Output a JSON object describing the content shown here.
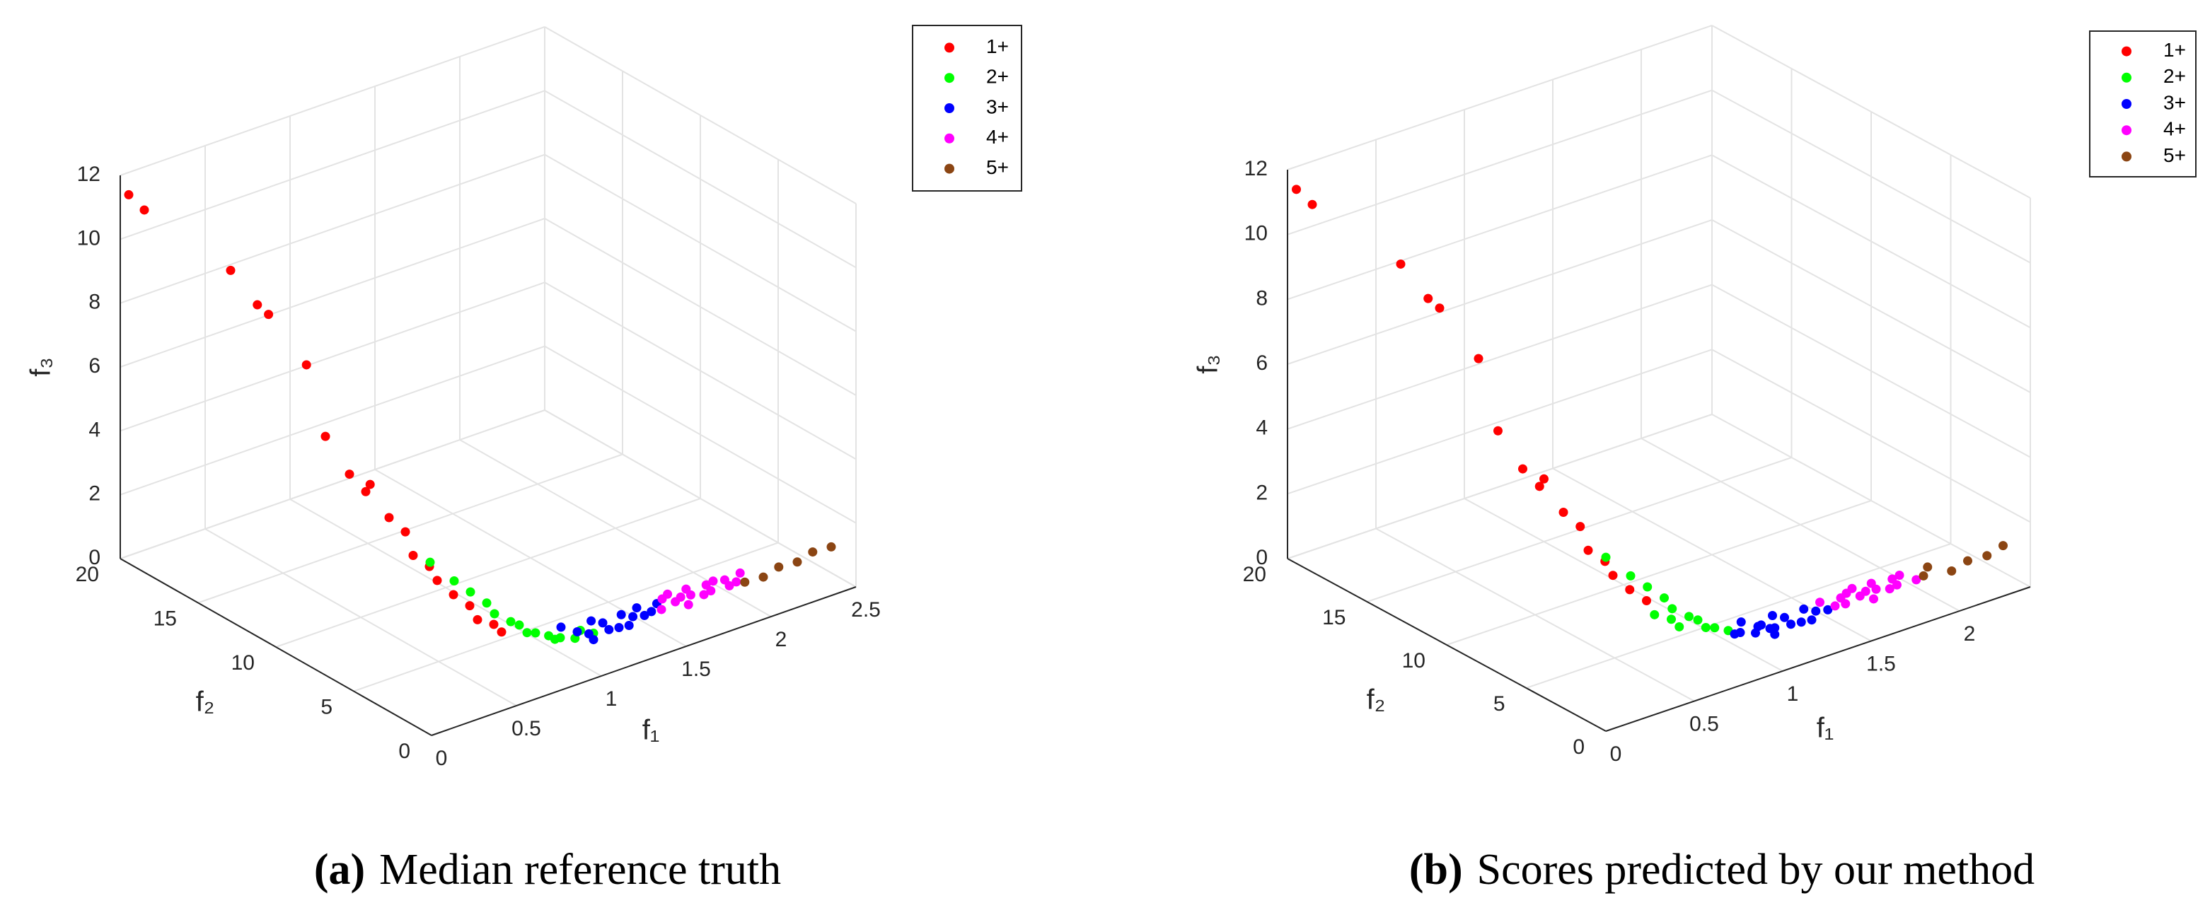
{
  "chart_data": [
    {
      "type": "scatter3d",
      "caption_label": "(a)",
      "caption": "Median reference truth",
      "xlabel": "f₁",
      "ylabel": "f₂",
      "zlabel": "f₃",
      "xlim": [
        0,
        2.5
      ],
      "xticks": [
        0,
        0.5,
        1,
        1.5,
        2,
        2.5
      ],
      "ylim": [
        0,
        20
      ],
      "yticks": [
        0,
        5,
        10,
        15,
        20
      ],
      "zlim": [
        0,
        12
      ],
      "zticks": [
        0,
        2,
        4,
        6,
        8,
        10,
        12
      ],
      "grid": true,
      "legend": "upper right",
      "series": [
        {
          "name": "1+",
          "color": "#ff0000",
          "x": [
            0.05,
            0.05,
            0.1,
            0.12,
            0.14,
            0.18,
            0.2,
            0.25,
            0.28,
            0.3,
            0.3,
            0.35,
            0.35,
            0.4,
            0.4,
            0.45,
            0.5,
            0.5,
            0.55,
            0.55
          ],
          "y": [
            20,
            19,
            14,
            12.5,
            12,
            10,
            9,
            8,
            7,
            7.5,
            6,
            5.5,
            5,
            4.5,
            4,
            3.5,
            3,
            2.5,
            2,
            1.5
          ],
          "z": [
            11.3,
            11.1,
            10.5,
            9.8,
            9.6,
            8.5,
            6.5,
            5.5,
            5.4,
            5.0,
            4.6,
            4.2,
            3.6,
            3.3,
            3.0,
            2.6,
            2.3,
            2.0,
            1.9,
            1.8
          ]
        },
        {
          "name": "2+",
          "color": "#00ff00",
          "x": [
            0.45,
            0.5,
            0.55,
            0.6,
            0.6,
            0.65,
            0.7,
            0.7,
            0.75,
            0.8,
            0.8,
            0.85,
            0.9,
            0.95,
            1.0
          ],
          "y": [
            5,
            4,
            3.5,
            3,
            2.5,
            2,
            2,
            1.5,
            1.5,
            1.2,
            0.8,
            1,
            0.6,
            0.8,
            0.5
          ],
          "z": [
            3.2,
            2.8,
            2.5,
            2.2,
            2.0,
            1.8,
            1.6,
            1.5,
            1.4,
            1.3,
            1.3,
            1.2,
            1.2,
            1.3,
            1.2
          ]
        },
        {
          "name": "3+",
          "color": "#0000ff",
          "x": [
            0.9,
            0.95,
            1.0,
            1.05,
            1.1,
            1.1,
            1.15,
            1.2,
            1.25,
            1.3,
            1.3,
            1.35,
            1.4,
            1.2,
            1.0
          ],
          "y": [
            1.5,
            1,
            0.8,
            1.2,
            0.6,
            1,
            0.5,
            0.9,
            0.7,
            0.5,
            1,
            0.6,
            0.8,
            0.4,
            0.5
          ],
          "z": [
            1.3,
            1.2,
            1.1,
            1.3,
            1.1,
            1.2,
            1.1,
            1.3,
            1.2,
            1.2,
            1.3,
            1.2,
            1.3,
            1.1,
            1.0
          ]
        },
        {
          "name": "4+",
          "color": "#ff00ff",
          "x": [
            1.4,
            1.45,
            1.5,
            1.5,
            1.55,
            1.6,
            1.6,
            1.65,
            1.7,
            1.7,
            1.75,
            1.8,
            1.8,
            1.85,
            1.9,
            1.55
          ],
          "y": [
            0.5,
            1,
            0.7,
            1.2,
            0.4,
            0.8,
            1.1,
            0.5,
            0.9,
            0.6,
            1,
            0.5,
            0.8,
            0.6,
            0.9,
            0.9
          ],
          "z": [
            1.2,
            1.3,
            1.2,
            1.3,
            1.1,
            1.2,
            1.3,
            1.2,
            1.3,
            1.2,
            1.3,
            1.2,
            1.3,
            1.2,
            1.3,
            1.2
          ]
        },
        {
          "name": "5+",
          "color": "#8b4513",
          "x": [
            1.9,
            2.0,
            2.1,
            2.2,
            2.3,
            2.4
          ],
          "y": [
            0.6,
            0.5,
            0.6,
            0.5,
            0.6,
            0.5
          ],
          "z": [
            1.1,
            1.1,
            1.2,
            1.2,
            1.3,
            1.3
          ]
        }
      ]
    },
    {
      "type": "scatter3d",
      "caption_label": "(b)",
      "caption": "Scores predicted by our method",
      "xlabel": "f₁",
      "ylabel": "f₂",
      "zlabel": "f₃",
      "xlim": [
        0,
        2.4
      ],
      "xticks": [
        0,
        0.5,
        1,
        1.5,
        2
      ],
      "ylim": [
        0,
        20
      ],
      "yticks": [
        0,
        5,
        10,
        15,
        20
      ],
      "zlim": [
        0,
        12
      ],
      "zticks": [
        0,
        2,
        4,
        6,
        8,
        10,
        12
      ],
      "grid": true,
      "legend": "upper right",
      "series": [
        {
          "name": "1+",
          "color": "#ff0000",
          "x": [
            0.05,
            0.05,
            0.1,
            0.12,
            0.14,
            0.18,
            0.2,
            0.25,
            0.28,
            0.3,
            0.3,
            0.35,
            0.35,
            0.4,
            0.4,
            0.45,
            0.5
          ],
          "y": [
            20,
            19,
            14,
            12.5,
            12,
            10,
            9,
            8,
            7,
            7.5,
            6,
            5.5,
            5,
            4.5,
            4,
            3.5,
            3
          ],
          "z": [
            11.3,
            11.1,
            10.5,
            9.8,
            9.6,
            8.5,
            6.5,
            5.5,
            5.4,
            5.0,
            4.6,
            4.2,
            3.6,
            3.3,
            3.0,
            2.6,
            2.3
          ]
        },
        {
          "name": "2+",
          "color": "#00ff00",
          "x": [
            0.5,
            0.55,
            0.55,
            0.45,
            0.5,
            0.55,
            0.6,
            0.6,
            0.65,
            0.7,
            0.7,
            0.75,
            0.8
          ],
          "y": [
            2.5,
            2,
            1.5,
            5,
            4,
            3.5,
            3,
            2.5,
            2,
            2,
            1.5,
            1.5,
            1.2
          ],
          "z": [
            2.0,
            1.9,
            1.8,
            3.2,
            2.8,
            2.5,
            2.2,
            2.0,
            1.8,
            1.6,
            1.5,
            1.4,
            1.3
          ]
        },
        {
          "name": "3+",
          "color": "#0000ff",
          "x": [
            0.8,
            0.85,
            0.9,
            0.95,
            1.0,
            0.9,
            0.95,
            1.0,
            1.05,
            1.1,
            1.1,
            1.15,
            1.2,
            1.25,
            1.3,
            1.2,
            1.0
          ],
          "y": [
            0.8,
            1,
            0.6,
            0.8,
            0.5,
            1.5,
            1,
            0.8,
            1.2,
            0.6,
            1,
            0.5,
            0.9,
            0.7,
            0.5,
            0.4,
            0.5
          ],
          "z": [
            1.3,
            1.2,
            1.2,
            1.3,
            1.2,
            1.3,
            1.2,
            1.1,
            1.3,
            1.1,
            1.2,
            1.1,
            1.3,
            1.2,
            1.2,
            1.1,
            1.0
          ]
        },
        {
          "name": "4+",
          "color": "#ff00ff",
          "x": [
            1.3,
            1.35,
            1.4,
            1.4,
            1.45,
            1.5,
            1.5,
            1.55,
            1.6,
            1.6,
            1.65,
            1.7,
            1.7,
            1.75,
            1.8,
            1.55
          ],
          "y": [
            1,
            0.6,
            0.8,
            0.5,
            1,
            0.7,
            1.2,
            0.4,
            0.8,
            1.1,
            0.5,
            0.9,
            0.6,
            1,
            0.5,
            0.9
          ],
          "z": [
            1.3,
            1.2,
            1.3,
            1.2,
            1.3,
            1.2,
            1.3,
            1.1,
            1.2,
            1.3,
            1.2,
            1.3,
            1.2,
            1.3,
            1.2,
            1.2
          ]
        },
        {
          "name": "5+",
          "color": "#8b4513",
          "x": [
            1.85,
            1.9,
            2.0,
            2.1,
            2.2,
            2.3
          ],
          "y": [
            0.6,
            0.9,
            0.5,
            0.6,
            0.5,
            0.6
          ],
          "z": [
            1.2,
            1.3,
            1.1,
            1.2,
            1.2,
            1.3
          ]
        }
      ]
    }
  ]
}
